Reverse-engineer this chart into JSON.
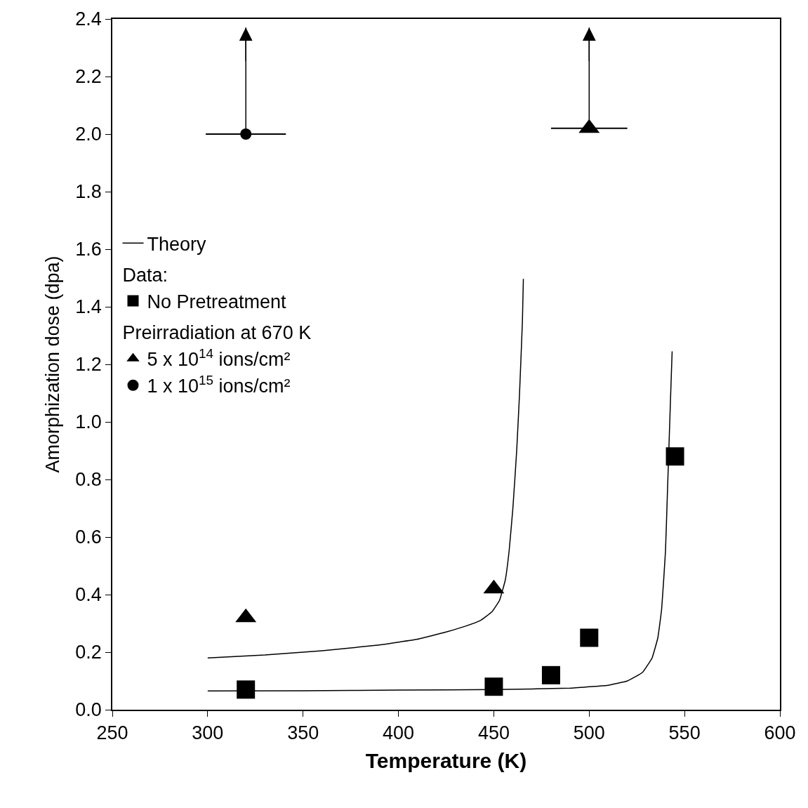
{
  "chart_data": {
    "type": "scatter",
    "xlabel": "Temperature (K)",
    "ylabel": "Amorphization dose (dpa)",
    "xlim": [
      250,
      600
    ],
    "xticks": [
      250,
      300,
      350,
      400,
      450,
      500,
      550,
      600
    ],
    "ylim": [
      0,
      2.4
    ],
    "yticks": [
      {
        "value": 0,
        "label": "0.0"
      },
      0.2,
      0.4,
      0.6,
      0.8,
      {
        "value": 1,
        "label": "1.0"
      },
      1.2,
      1.4,
      1.6,
      1.8,
      {
        "value": 2,
        "label": "2.0"
      },
      2.2,
      2.4
    ],
    "legend": "left",
    "annotations": [
      "Data:",
      "Preirradiation at 670 K"
    ],
    "series": [
      {
        "name": "Theory",
        "type": "line",
        "color": "#000000",
        "marker": "none",
        "x": [
          300,
          350,
          400,
          450,
          490,
          500,
          510,
          520,
          528,
          533,
          536,
          538,
          540,
          541,
          542,
          543,
          543.5
        ],
        "values": [
          0.065,
          0.066,
          0.068,
          0.07,
          0.075,
          0.08,
          0.085,
          0.1,
          0.13,
          0.18,
          0.25,
          0.35,
          0.55,
          0.75,
          0.95,
          1.15,
          1.245
        ]
      },
      {
        "type": "line",
        "color": "#000000",
        "marker": "none",
        "x": [
          300,
          330,
          360,
          390,
          410,
          425,
          435,
          443,
          449,
          453,
          456,
          458,
          460,
          462,
          463.5,
          465,
          465.5
        ],
        "values": [
          0.18,
          0.19,
          0.205,
          0.225,
          0.245,
          0.27,
          0.29,
          0.31,
          0.34,
          0.38,
          0.45,
          0.55,
          0.7,
          0.9,
          1.1,
          1.35,
          1.497
        ]
      },
      {
        "name": "No Pretreatment",
        "color": "#000000",
        "marker": "square",
        "x": [
          320,
          450,
          480,
          500,
          545
        ],
        "values": [
          0.07,
          0.08,
          0.12,
          0.25,
          0.88
        ]
      },
      {
        "name": "5 x 10$^{14}$ ions/cm²",
        "color": "#000000",
        "marker": "triangle",
        "x": [
          320,
          450,
          500
        ],
        "values": [
          0.32,
          0.42,
          2.02
        ],
        "xerrors": [
          null,
          null,
          20
        ],
        "errors": [
          null,
          null,
          [
            2.02,
            2.37
          ]
        ]
      },
      {
        "name": "1 x 10$^{15}$ ions/cm²",
        "color": "#000000",
        "marker": "circle",
        "x": [
          320
        ],
        "values": [
          2.0
        ],
        "xerrors": [
          21
        ],
        "errors": [
          [
            2.0,
            2.37
          ]
        ]
      }
    ]
  }
}
